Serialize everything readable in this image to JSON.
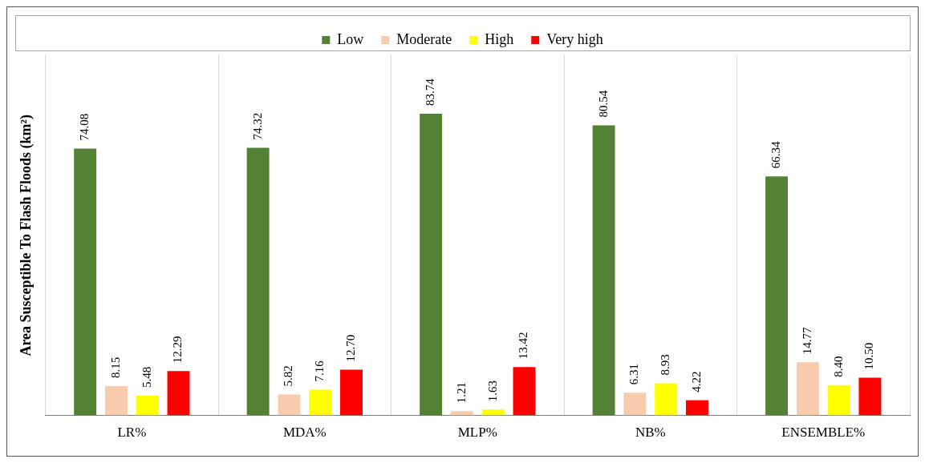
{
  "chart_data": {
    "type": "bar",
    "ylabel": "Area Susceptible To Flash Floods (km²)",
    "categories": [
      "LR%",
      "MDA%",
      "MLP%",
      "NB%",
      "ENSEMBLE%"
    ],
    "series": [
      {
        "name": "Low",
        "color": "#548235",
        "values": [
          74.08,
          74.32,
          83.74,
          80.54,
          66.34
        ],
        "value_labels": [
          "74.08",
          "74.32",
          "83.74",
          "80.54",
          "66.34"
        ]
      },
      {
        "name": "Moderate",
        "color": "#f8cbad",
        "values": [
          8.15,
          5.82,
          1.21,
          6.31,
          14.77
        ],
        "value_labels": [
          "8.15",
          "5.82",
          "1.21",
          "6.31",
          "14.77"
        ]
      },
      {
        "name": "High",
        "color": "#ffff00",
        "values": [
          5.48,
          7.16,
          1.63,
          8.93,
          8.4
        ],
        "value_labels": [
          "5.48",
          "7.16",
          "1.63",
          "8.93",
          "8.40"
        ]
      },
      {
        "name": "Very high",
        "color": "#ff0000",
        "values": [
          12.29,
          12.7,
          13.42,
          4.22,
          10.5
        ],
        "value_labels": [
          "12.29",
          "12.70",
          "13.42",
          "4.22",
          "10.50"
        ]
      }
    ],
    "legend": "top",
    "grid": "x",
    "tick_labels": "x"
  }
}
